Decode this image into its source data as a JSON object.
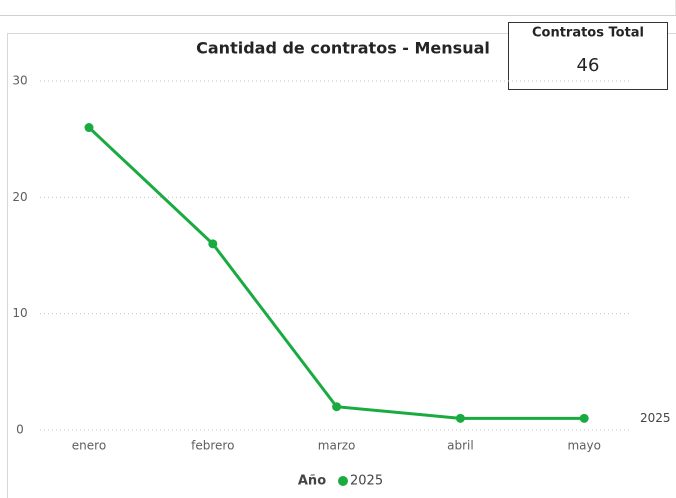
{
  "chart_data": {
    "type": "line",
    "title": "Cantidad de contratos - Mensual",
    "categories": [
      "enero",
      "febrero",
      "marzo",
      "abril",
      "mayo"
    ],
    "series": [
      {
        "name": "2025",
        "color": "#1aab40",
        "values": [
          26,
          16,
          2,
          1,
          1
        ]
      }
    ],
    "ylim": [
      0,
      30
    ],
    "yticks": [
      0,
      10,
      20,
      30
    ],
    "grid": true,
    "legend_title": "Año",
    "legend": "bottom"
  },
  "card": {
    "title": "Contratos Total",
    "value": 46
  }
}
